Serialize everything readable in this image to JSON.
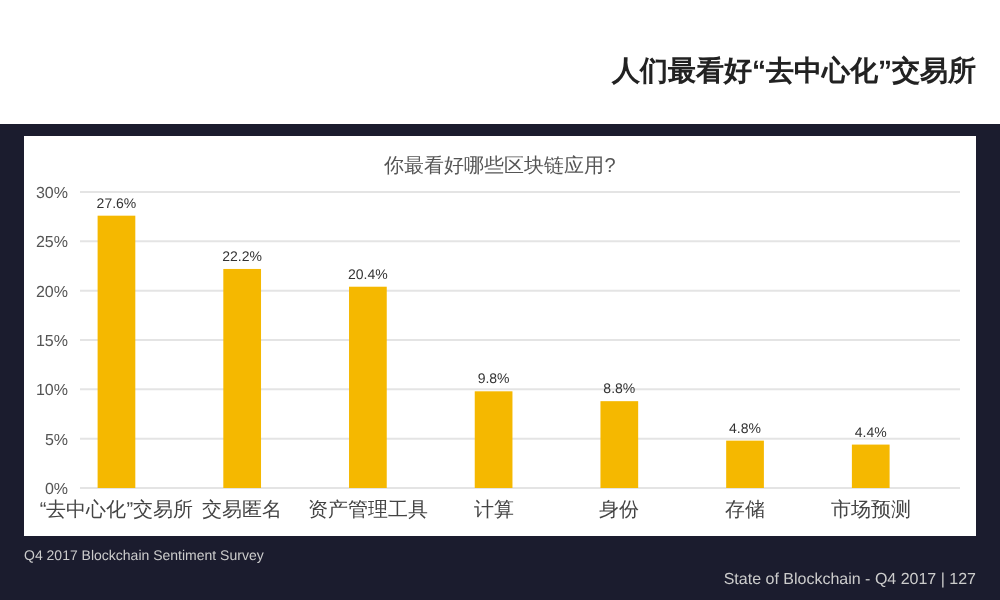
{
  "chart_data": {
    "type": "bar",
    "title": "人们最看好“去中心化”交易所",
    "subtitle": "你最看好哪些区块链应用?",
    "categories": [
      "“去中心化”交易所",
      "交易匿名",
      "资产管理工具",
      "计算",
      "身份",
      "存储",
      "市场预测"
    ],
    "values": [
      27.6,
      22.2,
      20.4,
      9.8,
      8.8,
      4.8,
      4.4
    ],
    "value_labels": [
      "27.6%",
      "22.2%",
      "20.4%",
      "9.8%",
      "8.8%",
      "4.8%",
      "4.4%"
    ],
    "color": "#f5b800",
    "ylim": [
      0,
      30
    ],
    "yticks": [
      {
        "value": 0,
        "label": "0%"
      },
      {
        "value": 5,
        "label": "5%"
      },
      {
        "value": 10,
        "label": "10%"
      },
      {
        "value": 15,
        "label": "15%"
      },
      {
        "value": 20,
        "label": "20%"
      },
      {
        "value": 25,
        "label": "25%"
      },
      {
        "value": 30,
        "label": "30%"
      }
    ],
    "grid": "y",
    "annotations": [
      "Q4 2017 Blockchain Sentiment Survey",
      "State of Blockchain - Q4 2017 | 127"
    ]
  }
}
